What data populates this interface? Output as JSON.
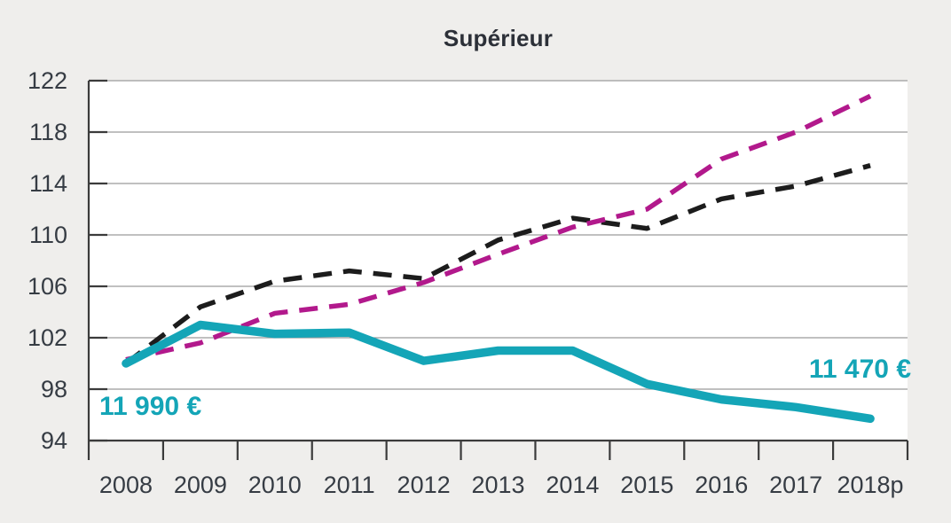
{
  "title": "Supérieur",
  "colors": {
    "teal": "#14a5b7",
    "magenta": "#b2198c",
    "black": "#1c1c1c",
    "grid": "#9b9b9b",
    "axis": "#3b3b3b",
    "label": "#363c44",
    "title": "#2c3038",
    "background": "#efeeec",
    "plot_background": "#ffffff"
  },
  "chart_data": {
    "type": "line",
    "title": "Supérieur",
    "categories": [
      "2008",
      "2009",
      "2010",
      "2011",
      "2012",
      "2013",
      "2014",
      "2015",
      "2016",
      "2017",
      "2018p"
    ],
    "series": [
      {
        "name": "dashed-black",
        "style": "dashed",
        "color_key": "black",
        "values": [
          100,
          104.4,
          106.4,
          107.2,
          106.6,
          109.6,
          111.3,
          110.5,
          112.8,
          113.8,
          115.4
        ]
      },
      {
        "name": "dashed-magenta",
        "style": "dashed",
        "color_key": "magenta",
        "values": [
          100.3,
          101.6,
          103.9,
          104.6,
          106.3,
          108.5,
          110.6,
          112.0,
          115.9,
          118.0,
          120.8
        ]
      },
      {
        "name": "solid-teal",
        "style": "solid",
        "color_key": "teal",
        "values": [
          100,
          103,
          102.3,
          102.4,
          100.2,
          101,
          101,
          98.4,
          97.2,
          96.6,
          95.7
        ]
      }
    ],
    "ylim": [
      94,
      122
    ],
    "yticks": [
      94,
      98,
      102,
      106,
      110,
      114,
      118,
      122
    ],
    "grid": true,
    "legend_position": "none",
    "annotations": [
      {
        "text": "11 990 €",
        "series": "solid-teal",
        "position": "start"
      },
      {
        "text": "11 470 €",
        "series": "solid-teal",
        "position": "end"
      }
    ]
  }
}
